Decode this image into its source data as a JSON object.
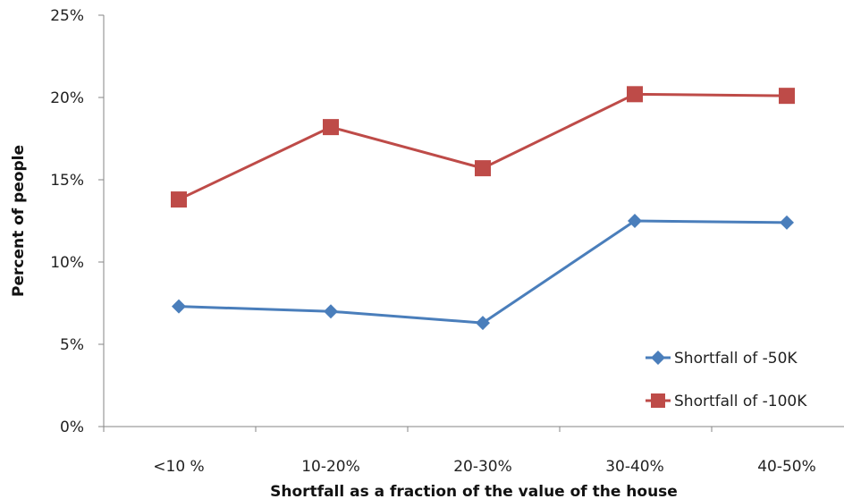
{
  "chart_data": {
    "type": "line",
    "title": "",
    "xlabel": "Shortfall as a fraction of the value of the house",
    "ylabel": "Percent of people",
    "categories": [
      "<10 %",
      "10-20%",
      "20-30%",
      "30-40%",
      "40-50%"
    ],
    "y_ticks": [
      "0%",
      "5%",
      "10%",
      "15%",
      "20%",
      "25%"
    ],
    "ylim": [
      0,
      25
    ],
    "grid": false,
    "legend_position": "bottom-right",
    "series": [
      {
        "name": "Shortfall of -50K",
        "values": [
          7.3,
          7.0,
          6.3,
          12.5,
          12.4
        ],
        "color": "#4a7ebb",
        "marker": "diamond"
      },
      {
        "name": "Shortfall of -100K",
        "values": [
          13.8,
          18.2,
          15.7,
          20.2,
          20.1
        ],
        "color": "#be4b48",
        "marker": "square"
      }
    ]
  }
}
